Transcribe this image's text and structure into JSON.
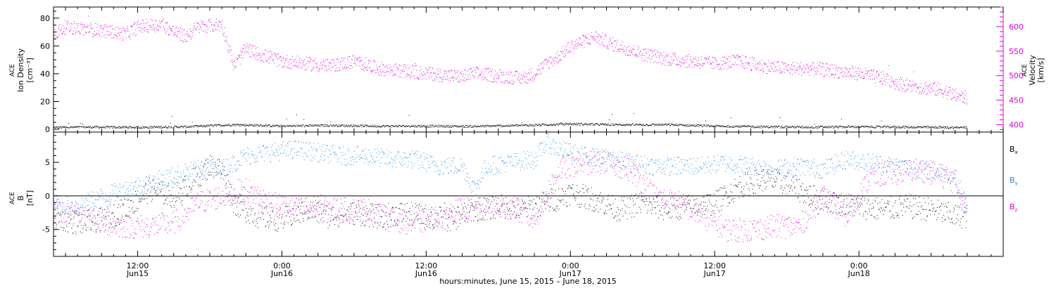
{
  "footer": {
    "time_axis_title": "hours:minutes, June 15, 2015 – June 18, 2015"
  },
  "colors": {
    "magenta": "#dd00dd",
    "blue": "#1e88e5",
    "black": "#000000"
  },
  "chart_data": [
    {
      "type": "scatter",
      "panel": "top",
      "ylabel": [
        "ACE",
        "Ion Density",
        "[cm⁻³]"
      ],
      "y2label": [
        "ACE",
        "Velocity",
        "[km/s]"
      ],
      "x_range_hours_since_2015-06-15T00:00": [
        5.0,
        84.0
      ],
      "ylim": [
        -2,
        88
      ],
      "y2lim": [
        385,
        640
      ],
      "yticks": [
        0,
        20,
        40,
        60,
        80
      ],
      "y2ticks": [
        400,
        450,
        500,
        550,
        600
      ],
      "grid": false,
      "series": [
        {
          "name": "",
          "axis": "left",
          "color": "#000000",
          "x": [
            5,
            8,
            12,
            16,
            20,
            24,
            28,
            32,
            36,
            40,
            44,
            48,
            52,
            56,
            60,
            64,
            68,
            72,
            76,
            80,
            81
          ],
          "y": [
            1.5,
            1.8,
            1.6,
            2.0,
            3.5,
            2.5,
            3.0,
            2.5,
            2.5,
            2.3,
            3.0,
            4.0,
            3.5,
            3.5,
            2.5,
            2.0,
            1.8,
            2.0,
            1.8,
            1.5,
            1.5
          ]
        },
        {
          "name": "",
          "axis": "right",
          "color": "#dd00dd",
          "x": [
            5,
            6,
            8,
            10,
            11,
            12,
            14,
            15,
            16,
            17,
            19,
            20,
            21,
            22,
            24,
            26,
            28,
            30,
            32,
            34,
            36,
            38,
            39,
            40,
            42,
            44,
            45,
            46,
            47,
            48,
            50,
            52,
            54,
            56,
            58,
            60,
            62,
            63,
            64,
            66,
            68,
            70,
            72,
            74,
            76,
            78,
            79,
            80,
            81
          ],
          "y": [
            585,
            600,
            595,
            590,
            585,
            600,
            605,
            590,
            580,
            600,
            605,
            520,
            555,
            545,
            530,
            525,
            520,
            530,
            515,
            510,
            505,
            500,
            498,
            505,
            500,
            495,
            505,
            525,
            540,
            560,
            580,
            560,
            545,
            535,
            530,
            525,
            530,
            525,
            520,
            515,
            515,
            510,
            505,
            495,
            480,
            475,
            470,
            460,
            455
          ]
        }
      ]
    },
    {
      "type": "scatter",
      "panel": "bottom",
      "ylabel": [
        "ACE",
        "B",
        "[nT]"
      ],
      "x_range_hours_since_2015-06-15T00:00": [
        5.0,
        84.0
      ],
      "ylim": [
        -9,
        9.5
      ],
      "yticks": [
        -5,
        0,
        5
      ],
      "xticks": [
        12,
        24,
        36,
        48,
        60,
        72
      ],
      "xtick_labels": [
        [
          "12:00",
          ""
        ],
        [
          "0:00",
          "Jun16"
        ],
        [
          "12:00",
          ""
        ],
        [
          "0:00",
          "Jun17"
        ],
        [
          "12:00",
          "Jun17"
        ],
        [
          "0:00",
          "Jun18"
        ]
      ],
      "first_tick_labels": [
        "12:00",
        "Jun15"
      ],
      "grid": false,
      "series": [
        {
          "name": "Bx",
          "color": "#000000",
          "x": [
            5,
            7,
            9,
            11,
            13,
            15,
            17,
            18,
            19,
            20,
            22,
            24,
            26,
            28,
            30,
            32,
            34,
            36,
            38,
            40,
            42,
            44,
            46,
            48,
            50,
            52,
            54,
            56,
            58,
            60,
            62,
            64,
            66,
            68,
            70,
            72,
            74,
            76,
            78,
            80,
            81
          ],
          "y": [
            -3,
            -4,
            -3.5,
            -2,
            1,
            0,
            3,
            4.5,
            4,
            -1,
            -3,
            -3.5,
            -2,
            -3,
            -2.5,
            -3,
            -2.5,
            -3,
            -3.5,
            -2,
            -1.5,
            -2,
            -1,
            0.5,
            -0.5,
            -2,
            -1,
            -2,
            -1.5,
            -1,
            1.5,
            2.5,
            2,
            0,
            -1,
            -1.5,
            -2,
            -1.5,
            -2,
            -3,
            -3
          ]
        },
        {
          "name": "By",
          "color": "#1e88e5",
          "x": [
            5,
            7,
            9,
            11,
            13,
            15,
            17,
            18,
            19,
            20,
            21,
            23,
            25,
            27,
            29,
            31,
            33,
            35,
            37,
            39,
            40,
            41,
            43,
            45,
            46,
            47,
            49,
            51,
            53,
            55,
            57,
            59,
            61,
            63,
            65,
            67,
            69,
            71,
            73,
            75,
            77,
            79,
            80,
            81
          ],
          "y": [
            -1,
            -1.5,
            0,
            1,
            2,
            3,
            4,
            4.5,
            4,
            5,
            6,
            6.5,
            7,
            6.5,
            6,
            6,
            5.5,
            5.5,
            4.5,
            4.5,
            1,
            4.5,
            5,
            5.5,
            8,
            7,
            6,
            5.5,
            5,
            4.5,
            4.5,
            4.5,
            5,
            4.5,
            4,
            4.5,
            4,
            5.5,
            5,
            4.5,
            4,
            3.5,
            3,
            -2
          ]
        },
        {
          "name": "Bz",
          "color": "#dd00dd",
          "x": [
            5,
            7,
            9,
            11,
            13,
            15,
            17,
            19,
            21,
            23,
            25,
            27,
            29,
            31,
            33,
            35,
            37,
            39,
            41,
            43,
            45,
            47,
            49,
            51,
            53,
            55,
            57,
            59,
            61,
            63,
            65,
            67,
            69,
            71,
            73,
            75,
            77,
            79,
            80,
            81
          ],
          "y": [
            -2,
            -3,
            -4,
            -4.5,
            -4.5,
            -4,
            -1,
            0,
            1,
            -1,
            -2,
            -1.5,
            -2,
            -2,
            -3.5,
            -4,
            -3,
            -2,
            -2,
            -1.5,
            -3.5,
            4,
            5,
            5,
            4,
            0,
            -1,
            -3,
            -5,
            -5,
            -4.5,
            -4.5,
            0,
            -3,
            3,
            3.5,
            4,
            3,
            2,
            -2
          ]
        }
      ],
      "legend": [
        "B",
        "B",
        "B"
      ],
      "legend_subscripts": [
        "x",
        "y",
        "z"
      ],
      "legend_placement": "right"
    }
  ]
}
